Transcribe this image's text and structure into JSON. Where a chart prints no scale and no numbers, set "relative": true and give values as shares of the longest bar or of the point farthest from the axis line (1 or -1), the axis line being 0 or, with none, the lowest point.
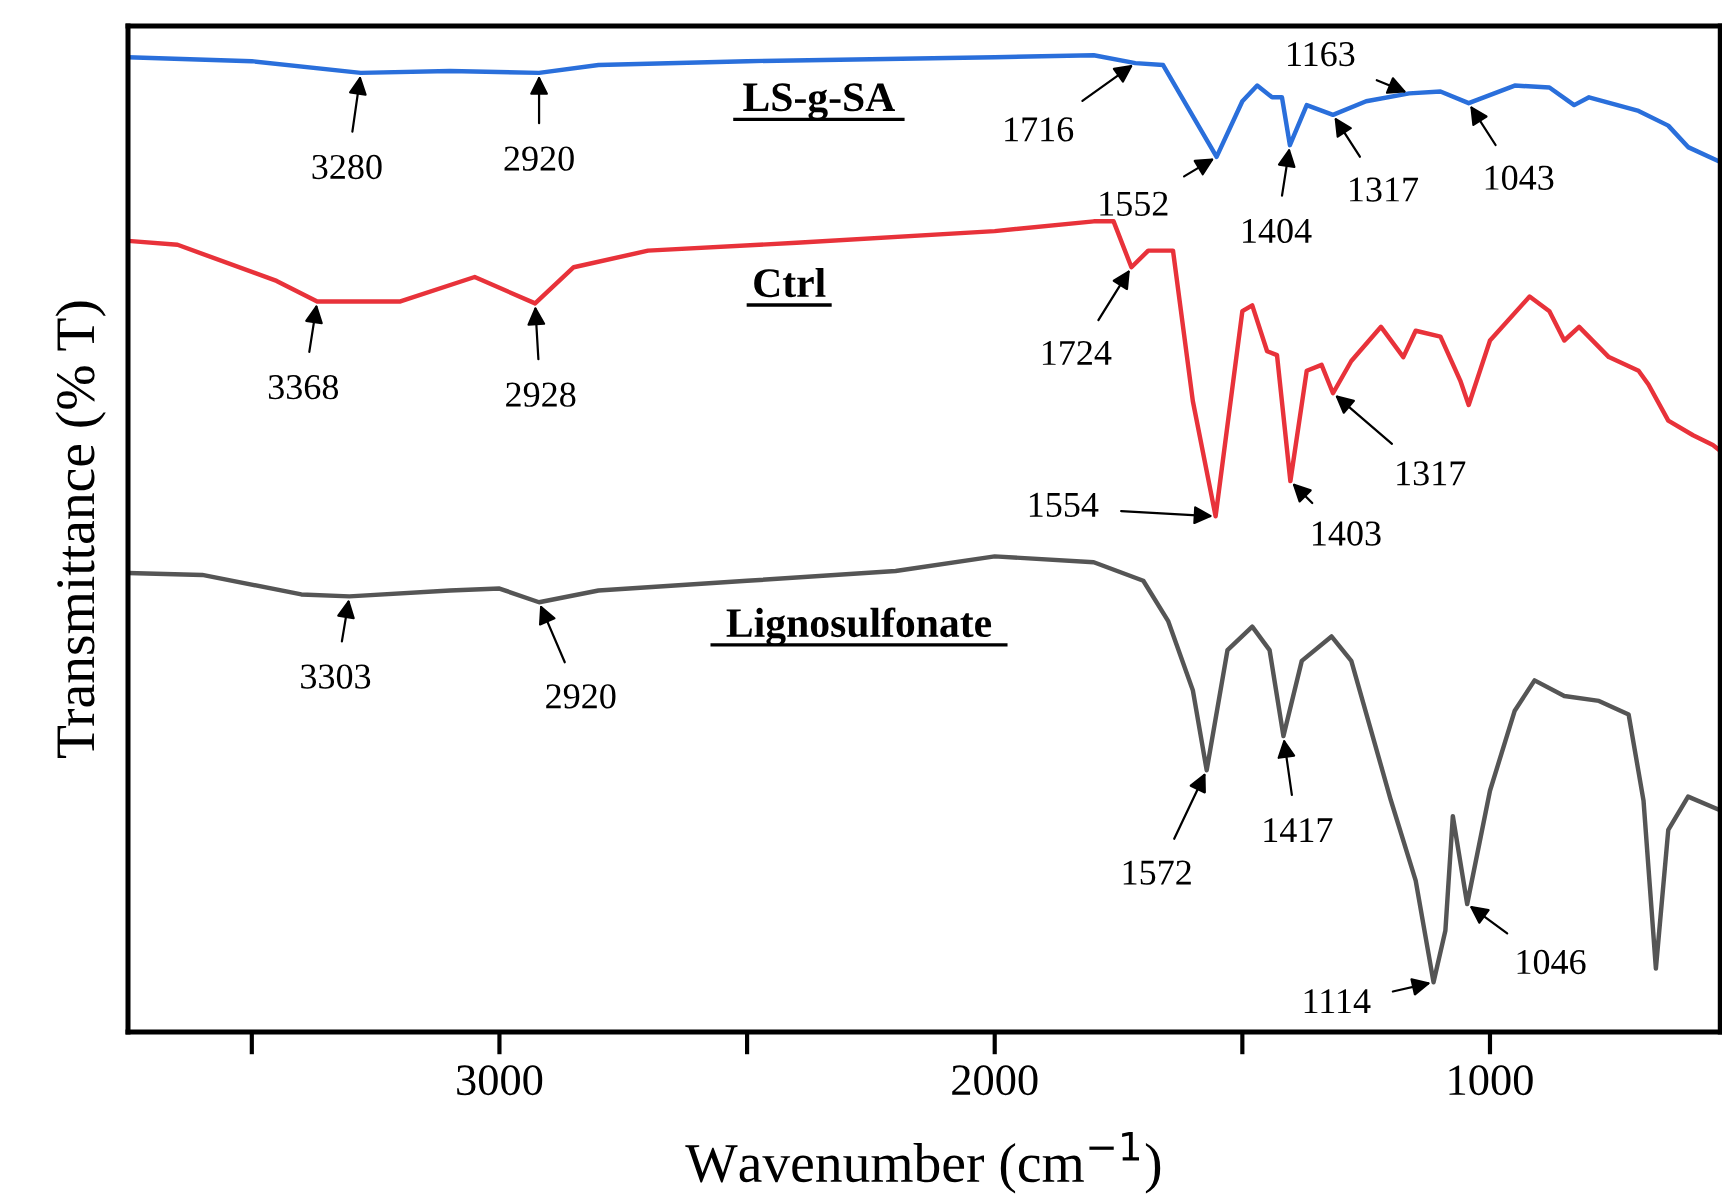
{
  "chart_data": {
    "type": "line",
    "relative": true,
    "xlabel": "Wavenumber (cm$^{−1}$)",
    "ylabel": "Transmittance (% T)",
    "xlim": [
      3750,
      535
    ],
    "xticks": [
      {
        "value": 3500,
        "label": null
      },
      3000,
      {
        "value": 2500,
        "label": null
      },
      2000,
      {
        "value": 1500,
        "label": null
      },
      1000
    ],
    "tick_labels": "x",
    "grid": false,
    "legend": false,
    "marker": "none",
    "line_style": "solid",
    "series": [
      {
        "name": "LS-g-SA",
        "color": "#2a6fdb",
        "x": [
          3750,
          3500,
          3280,
          3100,
          2920,
          2800,
          2500,
          2000,
          1800,
          1716,
          1660,
          1552,
          1500,
          1470,
          1440,
          1420,
          1404,
          1370,
          1317,
          1250,
          1163,
          1100,
          1043,
          950,
          880,
          830,
          800,
          700,
          640,
          600,
          540
        ],
        "values": [
          0.998,
          0.994,
          0.982,
          0.984,
          0.982,
          0.99,
          0.994,
          0.998,
          1.0,
          0.992,
          0.99,
          0.896,
          0.953,
          0.969,
          0.957,
          0.957,
          0.908,
          0.949,
          0.939,
          0.953,
          0.961,
          0.963,
          0.951,
          0.969,
          0.967,
          0.949,
          0.957,
          0.943,
          0.928,
          0.906,
          0.892
        ]
      },
      {
        "name": "Ctrl",
        "color": "#e8323a",
        "x": [
          3750,
          3650,
          3450,
          3368,
          3200,
          3050,
          2928,
          2850,
          2700,
          2400,
          2000,
          1800,
          1760,
          1724,
          1690,
          1640,
          1600,
          1554,
          1500,
          1480,
          1450,
          1430,
          1403,
          1370,
          1340,
          1317,
          1280,
          1220,
          1175,
          1150,
          1100,
          1060,
          1043,
          1000,
          920,
          880,
          850,
          820,
          760,
          700,
          680,
          640,
          590,
          550,
          535
        ],
        "values": [
          0.81,
          0.806,
          0.769,
          0.748,
          0.748,
          0.773,
          0.746,
          0.783,
          0.8,
          0.808,
          0.82,
          0.83,
          0.83,
          0.783,
          0.8,
          0.8,
          0.646,
          0.528,
          0.738,
          0.744,
          0.697,
          0.693,
          0.564,
          0.677,
          0.683,
          0.654,
          0.687,
          0.722,
          0.691,
          0.718,
          0.712,
          0.667,
          0.642,
          0.708,
          0.753,
          0.738,
          0.708,
          0.722,
          0.691,
          0.677,
          0.663,
          0.626,
          0.611,
          0.601,
          0.595
        ]
      },
      {
        "name": "Lignosulfonate",
        "color": "#555555",
        "x": [
          3750,
          3600,
          3400,
          3303,
          3100,
          3000,
          2920,
          2800,
          2500,
          2200,
          2000,
          1800,
          1700,
          1650,
          1600,
          1572,
          1530,
          1480,
          1445,
          1417,
          1380,
          1320,
          1280,
          1200,
          1150,
          1114,
          1090,
          1075,
          1046,
          1000,
          950,
          910,
          850,
          780,
          720,
          690,
          665,
          640,
          600,
          535
        ],
        "values": [
          0.47,
          0.468,
          0.448,
          0.446,
          0.452,
          0.454,
          0.44,
          0.452,
          0.462,
          0.472,
          0.487,
          0.481,
          0.462,
          0.421,
          0.35,
          0.268,
          0.391,
          0.415,
          0.391,
          0.303,
          0.38,
          0.405,
          0.38,
          0.237,
          0.155,
          0.051,
          0.104,
          0.221,
          0.131,
          0.247,
          0.329,
          0.36,
          0.344,
          0.339,
          0.325,
          0.237,
          0.065,
          0.207,
          0.241,
          0.227
        ]
      }
    ],
    "annotations": [
      {
        "text": "3280",
        "x": 3280,
        "y": 0.982
      },
      {
        "text": "2920",
        "x": 2920,
        "y": 0.982
      },
      {
        "text": "1716",
        "x": 1716,
        "y": 0.992
      },
      {
        "text": "1552",
        "x": 1552,
        "y": 0.896
      },
      {
        "text": "1404",
        "x": 1404,
        "y": 0.908
      },
      {
        "text": "1317",
        "x": 1317,
        "y": 0.939
      },
      {
        "text": "1163",
        "x": 1163,
        "y": 0.961
      },
      {
        "text": "1043",
        "x": 1043,
        "y": 0.951
      },
      {
        "text": "3368",
        "x": 3368,
        "y": 0.748
      },
      {
        "text": "2928",
        "x": 2928,
        "y": 0.746
      },
      {
        "text": "1724",
        "x": 1724,
        "y": 0.783
      },
      {
        "text": "1554",
        "x": 1554,
        "y": 0.528
      },
      {
        "text": "1403",
        "x": 1403,
        "y": 0.564
      },
      {
        "text": "1317",
        "x": 1317,
        "y": 0.654
      },
      {
        "text": "3303",
        "x": 3303,
        "y": 0.446
      },
      {
        "text": "2920",
        "x": 2920,
        "y": 0.44
      },
      {
        "text": "1572",
        "x": 1572,
        "y": 0.268
      },
      {
        "text": "1417",
        "x": 1417,
        "y": 0.303
      },
      {
        "text": "1114",
        "x": 1114,
        "y": 0.051
      },
      {
        "text": "1046",
        "x": 1046,
        "y": 0.131
      }
    ]
  }
}
